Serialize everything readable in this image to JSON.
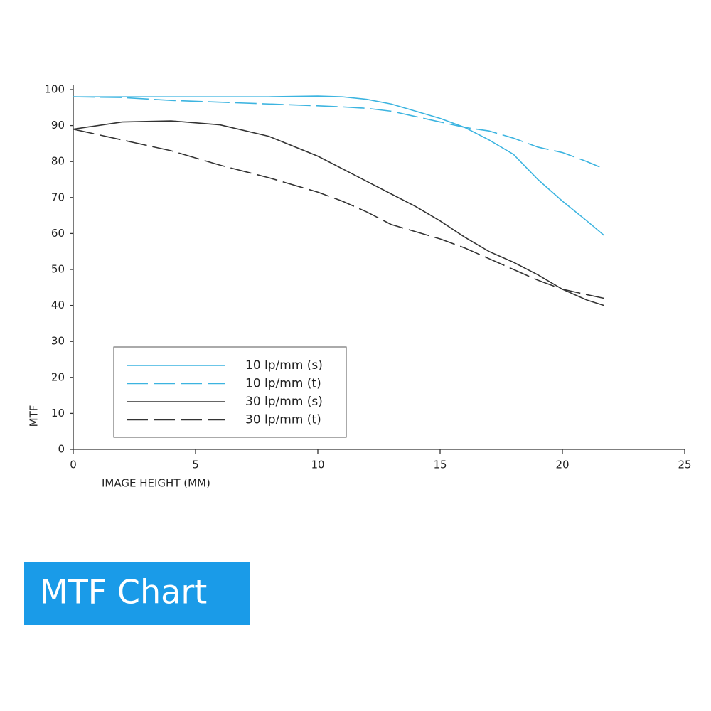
{
  "chart_data": {
    "type": "line",
    "title": "MTF Chart",
    "xlabel": "IMAGE HEIGHT (MM)",
    "ylabel": "MTF",
    "x": [
      0,
      2,
      4,
      6,
      8,
      10,
      11,
      12,
      13,
      14,
      15,
      16,
      17,
      18,
      19,
      20,
      21,
      21.7
    ],
    "series": [
      {
        "name": "10 lp/mm (s)",
        "color": "#3cb4e0",
        "dash": false,
        "values": [
          98,
          98,
          98,
          98,
          98,
          98.2,
          98,
          97.3,
          96,
          94,
          92,
          89.5,
          86,
          82,
          75,
          69,
          63.5,
          59.5
        ]
      },
      {
        "name": "10 lp/mm (t)",
        "color": "#3cb4e0",
        "dash": true,
        "values": [
          98,
          97.8,
          97,
          96.5,
          96,
          95.5,
          95.2,
          94.8,
          94,
          92.5,
          91,
          89.5,
          88.5,
          86.5,
          84,
          82.5,
          80,
          78
        ]
      },
      {
        "name": "30 lp/mm (s)",
        "color": "#333333",
        "dash": false,
        "values": [
          89,
          91,
          91.3,
          90.2,
          87,
          81.5,
          78,
          74.5,
          71,
          67.5,
          63.5,
          59,
          55,
          52,
          48.5,
          44.5,
          41.5,
          40
        ]
      },
      {
        "name": "30 lp/mm (t)",
        "color": "#333333",
        "dash": true,
        "values": [
          89,
          86,
          83,
          79,
          75.5,
          71.5,
          69,
          66,
          62.5,
          60.5,
          58.5,
          56,
          53,
          50,
          47,
          44.5,
          43,
          42
        ]
      }
    ],
    "xlim": [
      0,
      25
    ],
    "xticks": [
      0,
      5,
      10,
      15,
      20,
      25
    ],
    "ylim": [
      0,
      100
    ],
    "yticks": [
      0,
      10,
      20,
      30,
      40,
      50,
      60,
      70,
      80,
      90,
      100
    ],
    "grid": false,
    "legend": "lower left"
  }
}
